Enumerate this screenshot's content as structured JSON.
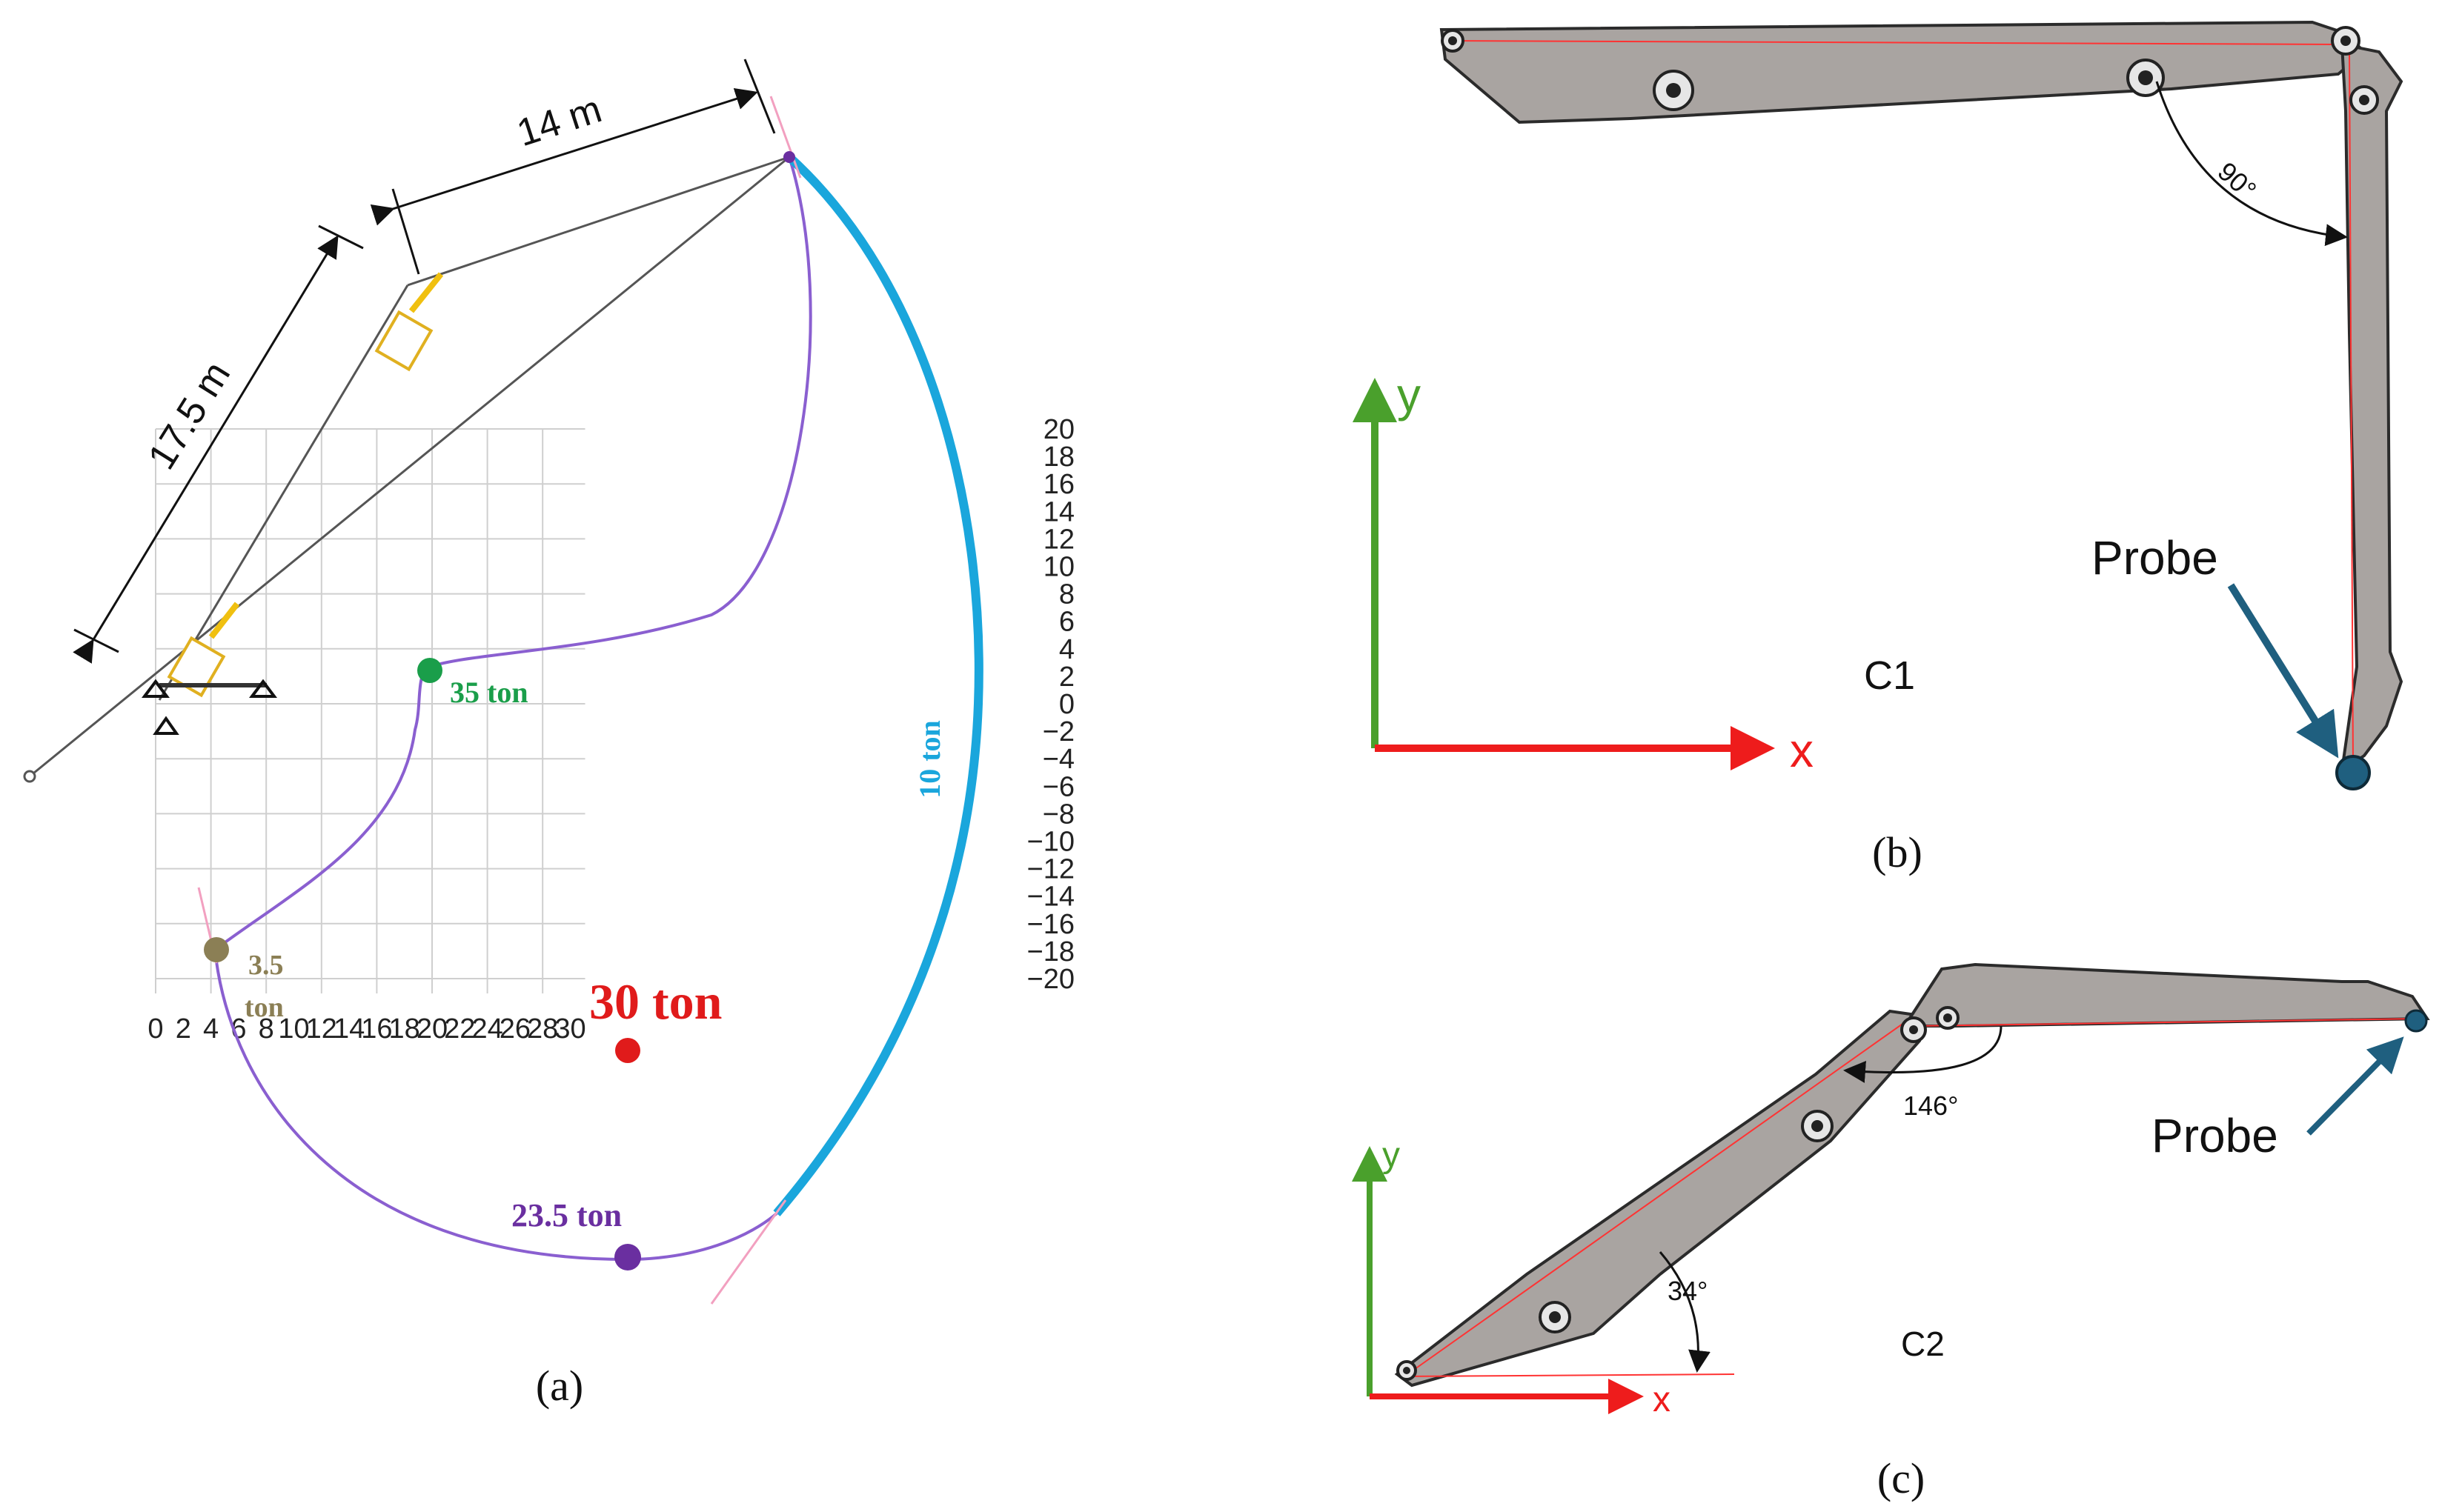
{
  "panel_a": {
    "caption": "(a)",
    "dim_boom": "17.5 m",
    "dim_stick": "14 m",
    "x_ticks": [
      "0",
      "2",
      "4",
      "6",
      "8",
      "10",
      "12",
      "14",
      "16",
      "18",
      "20",
      "22",
      "24",
      "26",
      "28",
      "30"
    ],
    "y_ticks": [
      "20",
      "18",
      "16",
      "14",
      "12",
      "10",
      "8",
      "6",
      "4",
      "2",
      "0",
      "−2",
      "−4",
      "−6",
      "−8",
      "−10",
      "−12",
      "−14",
      "−16",
      "−18",
      "−20"
    ],
    "labels": {
      "ton_35": "35 ton",
      "ton_3_5_a": "3.5",
      "ton_3_5_b": "ton",
      "ton_30": "30 ton",
      "ton_23_5": "23.5 ton",
      "ton_10": "10 ton"
    },
    "colors": {
      "ton_35": "#1a9e4a",
      "ton_3_5": "#8b7f55",
      "ton_30": "#e01b1b",
      "ton_23_5": "#6a2fa0",
      "ton_10": "#1aa6dc",
      "envelope": "#8a5fd0"
    }
  },
  "panel_b": {
    "caption": "(b)",
    "config": "C1",
    "angle": "90°",
    "probe": "Probe",
    "axis_x": "x",
    "axis_y": "y"
  },
  "panel_c": {
    "caption": "(c)",
    "config": "C2",
    "angle_joint": "146°",
    "angle_base": "34°",
    "probe": "Probe",
    "axis_x": "x",
    "axis_y": "y"
  },
  "colors": {
    "axis_x": "#ee1c1c",
    "axis_y": "#4aa02c",
    "probe": "#1f5f7f",
    "boom": "#a9a4a1"
  }
}
